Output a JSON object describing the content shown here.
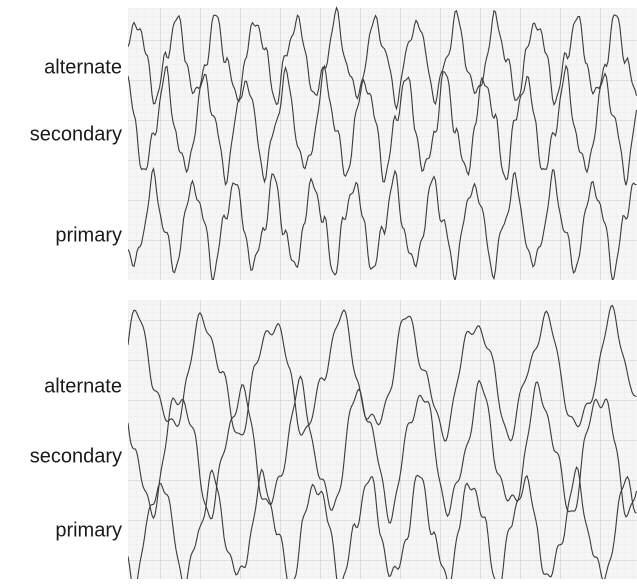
{
  "panels": [
    {
      "labels": [
        "alternate",
        "secondary",
        "primary"
      ]
    },
    {
      "labels": [
        "alternate",
        "secondary",
        "primary"
      ]
    }
  ]
}
